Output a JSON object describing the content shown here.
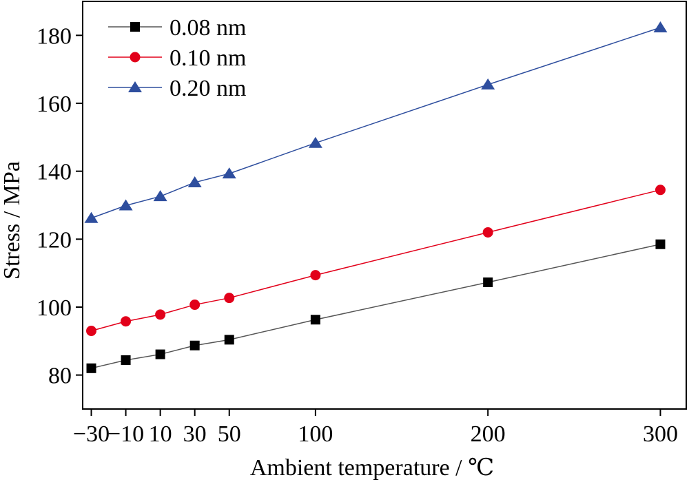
{
  "chart_data": {
    "type": "line",
    "title": "",
    "xlabel": "Ambient temperature / ℃",
    "ylabel": "Stress / MPa",
    "x": [
      -30,
      -10,
      10,
      30,
      50,
      100,
      200,
      300
    ],
    "x_tick_labels": [
      "−30",
      "−10",
      "10",
      "30",
      "50",
      "100",
      "200",
      "300"
    ],
    "xlim": [
      -35,
      315
    ],
    "ylim": [
      70,
      190
    ],
    "y_ticks": [
      80,
      100,
      120,
      140,
      160,
      180
    ],
    "y_tick_labels": [
      "80",
      "100",
      "120",
      "140",
      "160",
      "180"
    ],
    "legend_position": "top-left",
    "grid": false,
    "series": [
      {
        "name": "0.08 nm",
        "marker": "square",
        "color": "#000000",
        "line_color": "#555555",
        "values": [
          82.0,
          84.4,
          86.1,
          88.7,
          90.4,
          96.3,
          107.3,
          118.5
        ]
      },
      {
        "name": "0.10 nm",
        "marker": "circle",
        "color": "#e2001a",
        "line_color": "#e2001a",
        "values": [
          93.0,
          95.8,
          97.8,
          100.7,
          102.7,
          109.4,
          122.0,
          134.5
        ]
      },
      {
        "name": "0.20 nm",
        "marker": "triangle",
        "color": "#2e4e9e",
        "line_color": "#2e4e9e",
        "values": [
          126.2,
          129.9,
          132.6,
          136.7,
          139.3,
          148.3,
          165.5,
          182.3
        ]
      }
    ]
  }
}
